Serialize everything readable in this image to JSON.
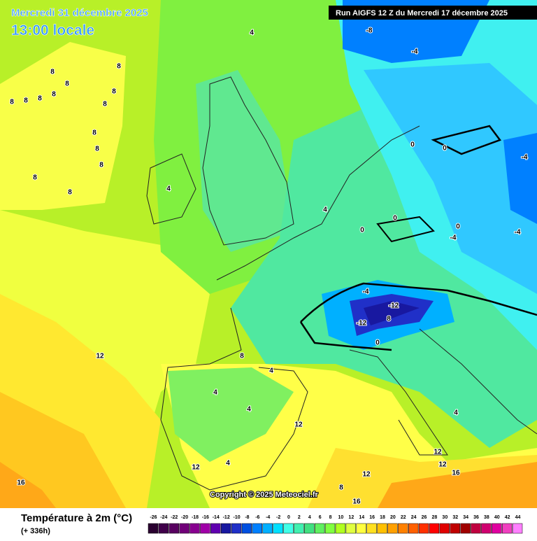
{
  "header": {
    "date": "Mercredi 31 décembre 2025",
    "time": "13:00 locale",
    "run": "Run AIGFS 12 Z du Mercredi 17 décembre 2025"
  },
  "copyright": "Copyright © 2025 Meteociel.fr",
  "legend": {
    "title": "Température à 2m (°C)",
    "subtitle": "(+ 336h)",
    "ticks": [
      -26,
      -24,
      -22,
      -20,
      -18,
      -16,
      -14,
      -12,
      -10,
      -8,
      -6,
      -4,
      -2,
      0,
      2,
      4,
      6,
      8,
      10,
      12,
      14,
      16,
      18,
      20,
      22,
      24,
      26,
      28,
      30,
      32,
      34,
      36,
      38,
      40,
      42,
      44
    ],
    "colors": [
      "#2a0030",
      "#40004a",
      "#580060",
      "#700078",
      "#880090",
      "#a000a8",
      "#6000b0",
      "#1818a0",
      "#2030c8",
      "#0050e0",
      "#0080ff",
      "#00b0ff",
      "#00e0ff",
      "#40ffe8",
      "#40f0b0",
      "#40e080",
      "#60f060",
      "#80ff40",
      "#b0ff20",
      "#e0ff40",
      "#ffff40",
      "#ffe020",
      "#ffc000",
      "#ffa000",
      "#ff8000",
      "#ff6000",
      "#ff3000",
      "#ff0000",
      "#e00000",
      "#c00000",
      "#a00000",
      "#c00040",
      "#d00070",
      "#e000a0",
      "#f040c0",
      "#ff80ff"
    ]
  },
  "map": {
    "contour_labels": [
      "8",
      "8",
      "8",
      "8",
      "8",
      "8",
      "8",
      "8",
      "8",
      "8",
      "8",
      "8",
      "8",
      "8",
      "4",
      "4",
      "4",
      "0",
      "0",
      "-4",
      "-4",
      "-8",
      "-4",
      "-12",
      "-12",
      "8",
      "0",
      "-4",
      "0",
      "0",
      "12",
      "8",
      "4",
      "4",
      "4",
      "12",
      "4",
      "12",
      "8",
      "16",
      "12",
      "16",
      "12",
      "12",
      "4",
      "16",
      "0",
      "-4"
    ]
  }
}
